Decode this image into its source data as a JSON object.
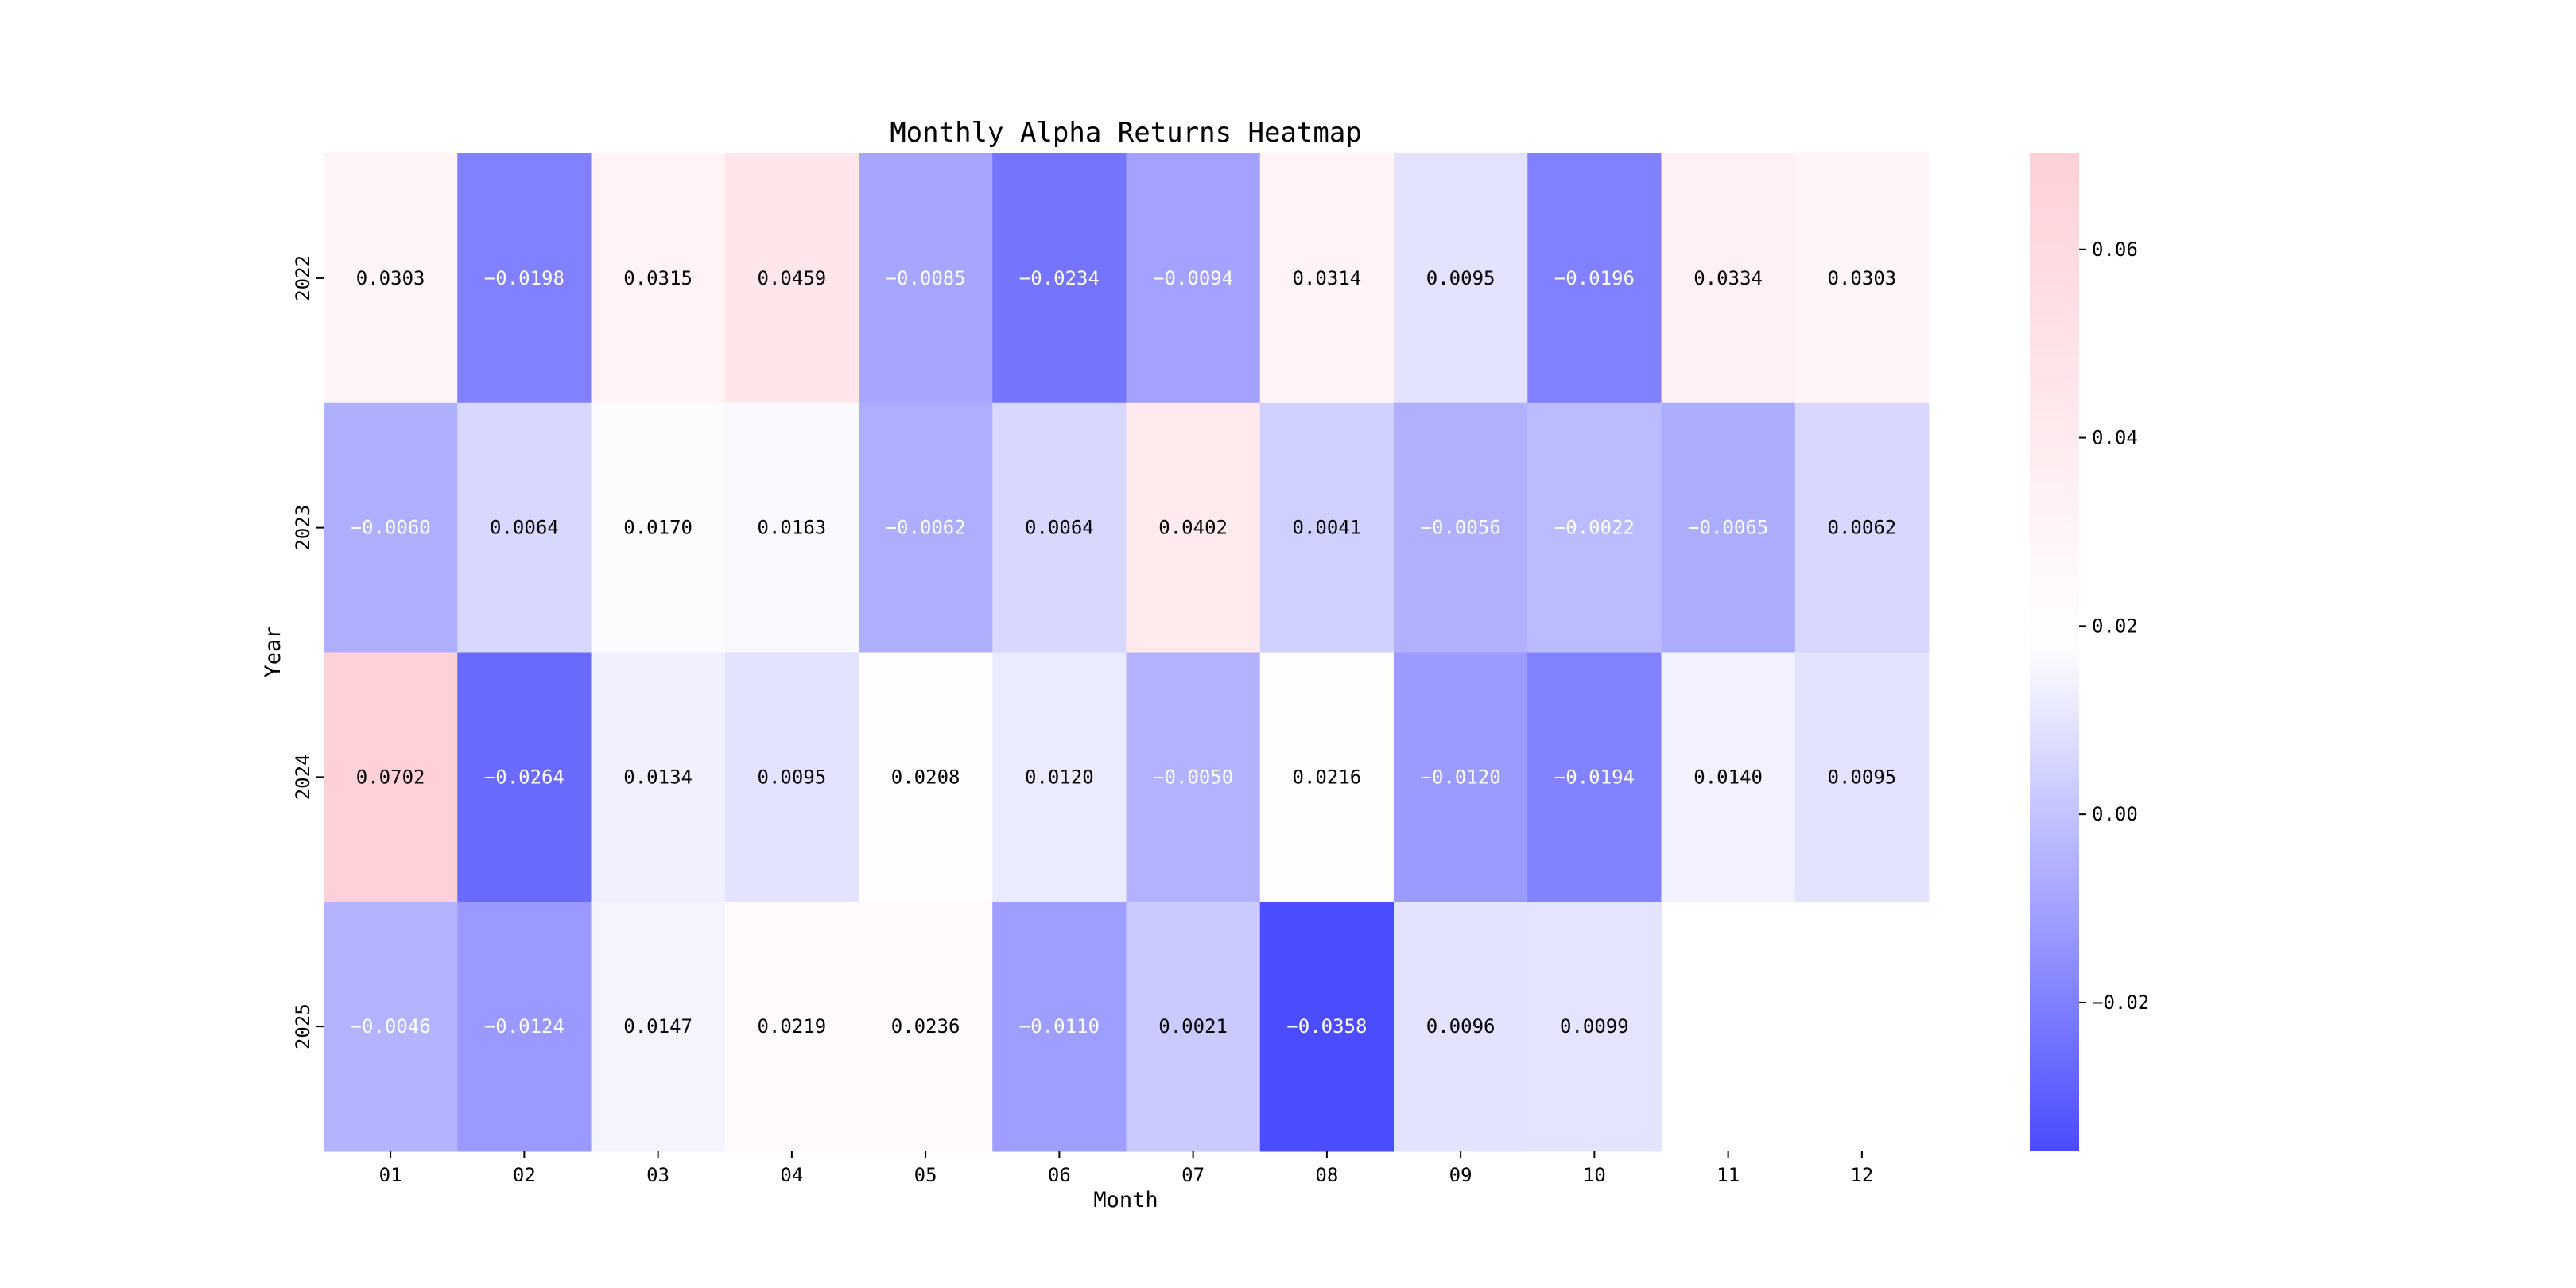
{
  "chart_data": {
    "type": "heatmap",
    "title": "Monthly Alpha Returns Heatmap",
    "xlabel": "Month",
    "ylabel": "Year",
    "x_categories": [
      "01",
      "02",
      "03",
      "04",
      "05",
      "06",
      "07",
      "08",
      "09",
      "10",
      "11",
      "12"
    ],
    "y_categories": [
      "2022",
      "2023",
      "2024",
      "2025"
    ],
    "values": [
      [
        0.0303,
        -0.0198,
        0.0315,
        0.0459,
        -0.0085,
        -0.0234,
        -0.0094,
        0.0314,
        0.0095,
        -0.0196,
        0.0334,
        0.0303
      ],
      [
        -0.006,
        0.0064,
        0.017,
        0.0163,
        -0.0062,
        0.0064,
        0.0402,
        0.0041,
        -0.0056,
        -0.0022,
        -0.0065,
        0.0062
      ],
      [
        0.0702,
        -0.0264,
        0.0134,
        0.0095,
        0.0208,
        0.012,
        -0.005,
        0.0216,
        -0.012,
        -0.0194,
        0.014,
        0.0095
      ],
      [
        -0.0046,
        -0.0124,
        0.0147,
        0.0219,
        0.0236,
        -0.011,
        0.0021,
        -0.0358,
        0.0096,
        0.0099,
        null,
        null
      ]
    ],
    "value_format": "4 decimals",
    "colorbar": {
      "vmin": -0.0358,
      "vmax": 0.0702,
      "center": 0.018,
      "ticks": [
        -0.02,
        0.0,
        0.02,
        0.04,
        0.06
      ],
      "tick_labels": [
        "−0.02",
        "0.00",
        "0.02",
        "0.04",
        "0.06"
      ],
      "colors": {
        "low": "#4b4bff",
        "mid": "#ffffff",
        "high": "#ffd0d8"
      }
    },
    "grid": false
  }
}
